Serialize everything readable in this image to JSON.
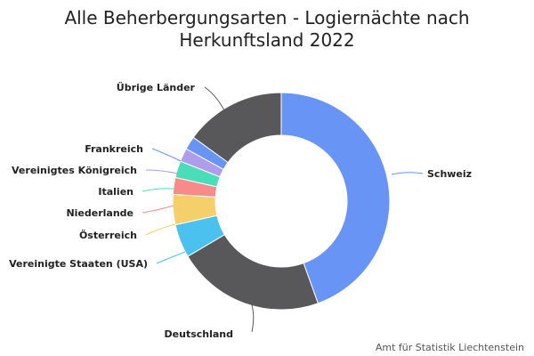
{
  "chart_data": {
    "type": "pie",
    "donut": true,
    "title_line1": "Alle Beherbergungsarten - Logiernächte nach",
    "title_line2": "Herkunftsland 2022",
    "credit": "Amt für Statistik Liechtenstein",
    "slices": [
      {
        "label": "Schweiz",
        "value": 44.5,
        "color": "#6794F5"
      },
      {
        "label": "Deutschland",
        "value": 22.0,
        "color": "#58585B"
      },
      {
        "label": "Vereinigte Staaten (USA)",
        "value": 5.0,
        "color": "#4BC1EF"
      },
      {
        "label": "Österreich",
        "value": 4.5,
        "color": "#F5D06A"
      },
      {
        "label": "Niederlande",
        "value": 2.5,
        "color": "#F98A8A"
      },
      {
        "label": "Italien",
        "value": 2.5,
        "color": "#4BDDB8"
      },
      {
        "label": "Vereinigtes Königreich",
        "value": 2.0,
        "color": "#AF9DEB"
      },
      {
        "label": "Frankreich",
        "value": 2.0,
        "color": "#6794F5"
      },
      {
        "label": "Übrige Länder",
        "value": 15.0,
        "color": "#58585B"
      }
    ]
  }
}
